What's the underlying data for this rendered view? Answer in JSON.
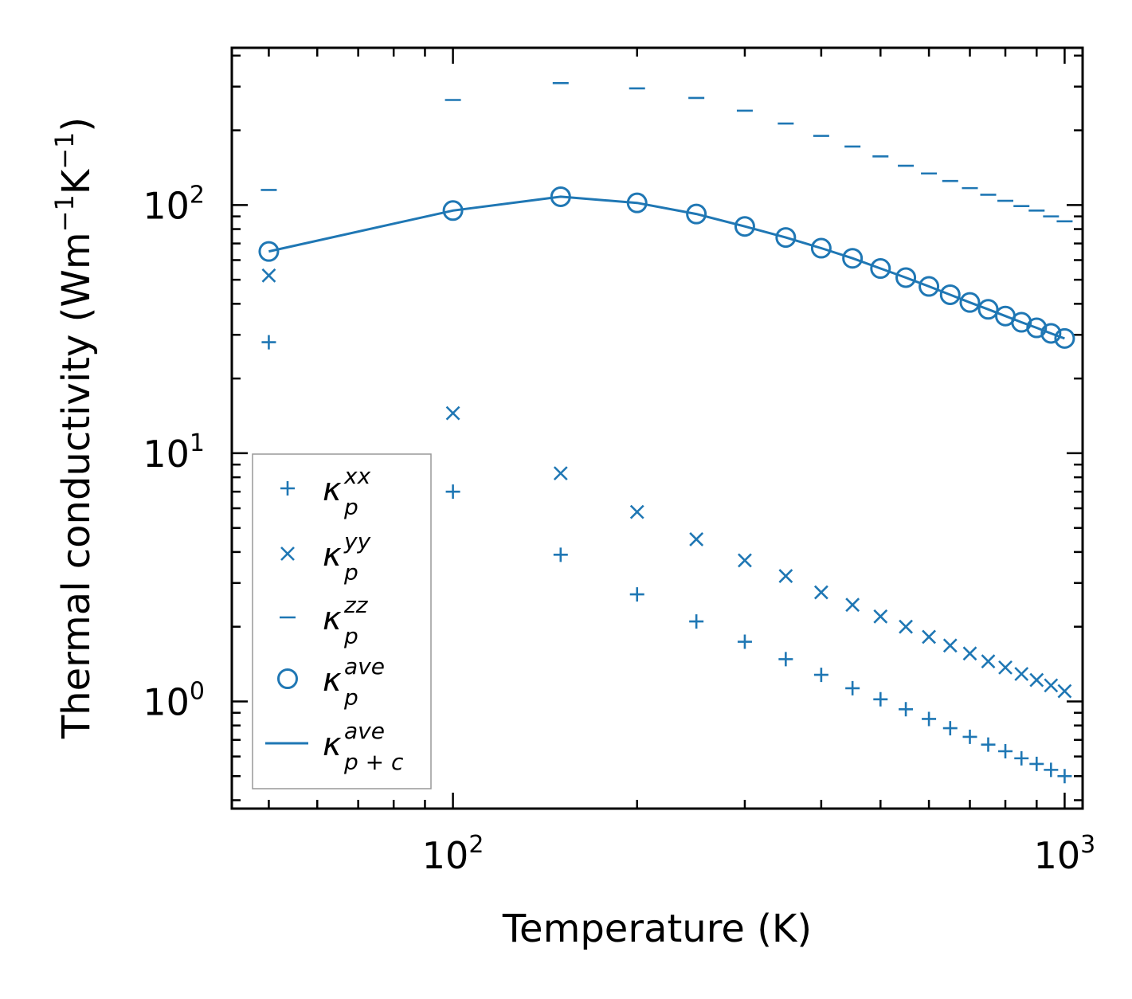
{
  "chart_data": {
    "type": "scatter",
    "xscale": "log",
    "yscale": "log",
    "xlabel": "Temperature (K)",
    "ylabel_main": "Thermal conductivity (Wm",
    "ylabel_unit": {
      "m_exp": "−1",
      "k": "K",
      "k_exp": "−1",
      "close": ")"
    },
    "xlim": [
      43.5,
      1070
    ],
    "ylim": [
      0.37,
      430
    ],
    "x_ticks": [
      {
        "base": "10",
        "exp": "2",
        "value": 100
      },
      {
        "base": "10",
        "exp": "3",
        "value": 1000
      }
    ],
    "y_ticks": [
      {
        "base": "10",
        "exp": "0",
        "value": 1
      },
      {
        "base": "10",
        "exp": "1",
        "value": 10
      },
      {
        "base": "10",
        "exp": "2",
        "value": 100
      }
    ],
    "color": "#1f77b4",
    "series": [
      {
        "name": "κ_p^xx",
        "marker": "plus",
        "legend": {
          "main": "κ",
          "sub": "p",
          "sup": "xx"
        },
        "points": [
          [
            50,
            28
          ],
          [
            100,
            7
          ],
          [
            150,
            3.9
          ],
          [
            200,
            2.7
          ],
          [
            250,
            2.1
          ],
          [
            300,
            1.74
          ],
          [
            350,
            1.48
          ],
          [
            400,
            1.28
          ],
          [
            450,
            1.13
          ],
          [
            500,
            1.02
          ],
          [
            550,
            0.93
          ],
          [
            600,
            0.85
          ],
          [
            650,
            0.78
          ],
          [
            700,
            0.72
          ],
          [
            750,
            0.67
          ],
          [
            800,
            0.63
          ],
          [
            850,
            0.59
          ],
          [
            900,
            0.56
          ],
          [
            950,
            0.53
          ],
          [
            1000,
            0.5
          ]
        ]
      },
      {
        "name": "κ_p^yy",
        "marker": "x",
        "legend": {
          "main": "κ",
          "sub": "p",
          "sup": "yy"
        },
        "points": [
          [
            50,
            52
          ],
          [
            100,
            14.5
          ],
          [
            150,
            8.3
          ],
          [
            200,
            5.8
          ],
          [
            250,
            4.5
          ],
          [
            300,
            3.7
          ],
          [
            350,
            3.2
          ],
          [
            400,
            2.75
          ],
          [
            450,
            2.45
          ],
          [
            500,
            2.2
          ],
          [
            550,
            2.0
          ],
          [
            600,
            1.82
          ],
          [
            650,
            1.68
          ],
          [
            700,
            1.56
          ],
          [
            750,
            1.45
          ],
          [
            800,
            1.37
          ],
          [
            850,
            1.29
          ],
          [
            900,
            1.22
          ],
          [
            950,
            1.16
          ],
          [
            1000,
            1.1
          ]
        ]
      },
      {
        "name": "κ_p^zz",
        "marker": "hline",
        "legend": {
          "main": "κ",
          "sub": "p",
          "sup": "zz"
        },
        "points": [
          [
            50,
            115
          ],
          [
            100,
            265
          ],
          [
            150,
            310
          ],
          [
            200,
            295
          ],
          [
            250,
            270
          ],
          [
            300,
            240
          ],
          [
            350,
            213
          ],
          [
            400,
            190
          ],
          [
            450,
            172
          ],
          [
            500,
            157
          ],
          [
            550,
            144
          ],
          [
            600,
            134
          ],
          [
            650,
            125
          ],
          [
            700,
            117
          ],
          [
            750,
            110
          ],
          [
            800,
            104
          ],
          [
            850,
            99
          ],
          [
            900,
            95
          ],
          [
            950,
            90
          ],
          [
            1000,
            86
          ]
        ]
      },
      {
        "name": "κ_p^ave",
        "marker": "circle",
        "legend": {
          "main": "κ",
          "sub": "p",
          "sup": "ave"
        },
        "points": [
          [
            50,
            65
          ],
          [
            100,
            95
          ],
          [
            150,
            108
          ],
          [
            200,
            102
          ],
          [
            250,
            92
          ],
          [
            300,
            82
          ],
          [
            350,
            74
          ],
          [
            400,
            67
          ],
          [
            450,
            61
          ],
          [
            500,
            55.5
          ],
          [
            550,
            51
          ],
          [
            600,
            47
          ],
          [
            650,
            43.5
          ],
          [
            700,
            40.5
          ],
          [
            750,
            38
          ],
          [
            800,
            35.7
          ],
          [
            850,
            33.7
          ],
          [
            900,
            32
          ],
          [
            950,
            30.4
          ],
          [
            1000,
            29
          ]
        ]
      },
      {
        "name": "κ_p+c^ave",
        "marker": "line",
        "legend": {
          "main": "κ",
          "sub": "p + c",
          "sup": "ave"
        },
        "points": [
          [
            50,
            65
          ],
          [
            100,
            95
          ],
          [
            150,
            108
          ],
          [
            200,
            102
          ],
          [
            250,
            92
          ],
          [
            300,
            82
          ],
          [
            350,
            74
          ],
          [
            400,
            67
          ],
          [
            450,
            61
          ],
          [
            500,
            55.5
          ],
          [
            550,
            51
          ],
          [
            600,
            47
          ],
          [
            650,
            43.5
          ],
          [
            700,
            40.5
          ],
          [
            750,
            38
          ],
          [
            800,
            35.7
          ],
          [
            850,
            33.7
          ],
          [
            900,
            32
          ],
          [
            950,
            30.4
          ],
          [
            1000,
            29
          ]
        ]
      }
    ],
    "legend_position": "lower-left"
  }
}
